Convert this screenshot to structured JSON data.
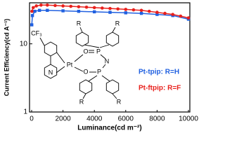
{
  "chart_data": {
    "type": "line",
    "log_y": true,
    "x_label": "Luminance(cd m⁻²)",
    "y_label": "Current Efficiency(cd A⁻¹)",
    "xlim": [
      0,
      10000
    ],
    "xticks": [
      0,
      2000,
      4000,
      6000,
      8000,
      10000
    ],
    "ylim": [
      1,
      40
    ],
    "yticks": [
      1,
      10
    ],
    "series": [
      {
        "name": "Pt-tpip: R=H",
        "color": "#2060e0",
        "marker": "square",
        "x": [
          10,
          50,
          200,
          500,
          1000,
          2000,
          3000,
          4000,
          5000,
          6000,
          7000,
          8000,
          9000,
          10000
        ],
        "values": [
          19,
          26,
          30,
          31,
          31,
          30.5,
          30,
          29.5,
          29,
          28.5,
          28,
          27,
          26,
          23
        ]
      },
      {
        "name": "Pt-ftpip: R=F",
        "color": "#e8201c",
        "marker": "circle",
        "x": [
          20,
          100,
          300,
          600,
          1000,
          1500,
          2000,
          2500,
          3000,
          3500,
          4000,
          4500,
          5000,
          5500,
          6000,
          6500,
          7000,
          7500,
          8000,
          8500,
          9000,
          9500,
          10000
        ],
        "values": [
          30,
          34,
          36,
          37,
          37,
          36.5,
          36,
          35.5,
          35,
          34.5,
          34,
          33.5,
          33,
          32.5,
          32,
          31.5,
          31,
          30,
          29,
          28,
          27,
          25.5,
          24
        ]
      }
    ]
  },
  "diagram": {
    "labels": [
      "CF₃",
      "Pt",
      "O",
      "P",
      "N",
      "P",
      "O",
      "N",
      "R",
      "R",
      "R",
      "R"
    ]
  }
}
